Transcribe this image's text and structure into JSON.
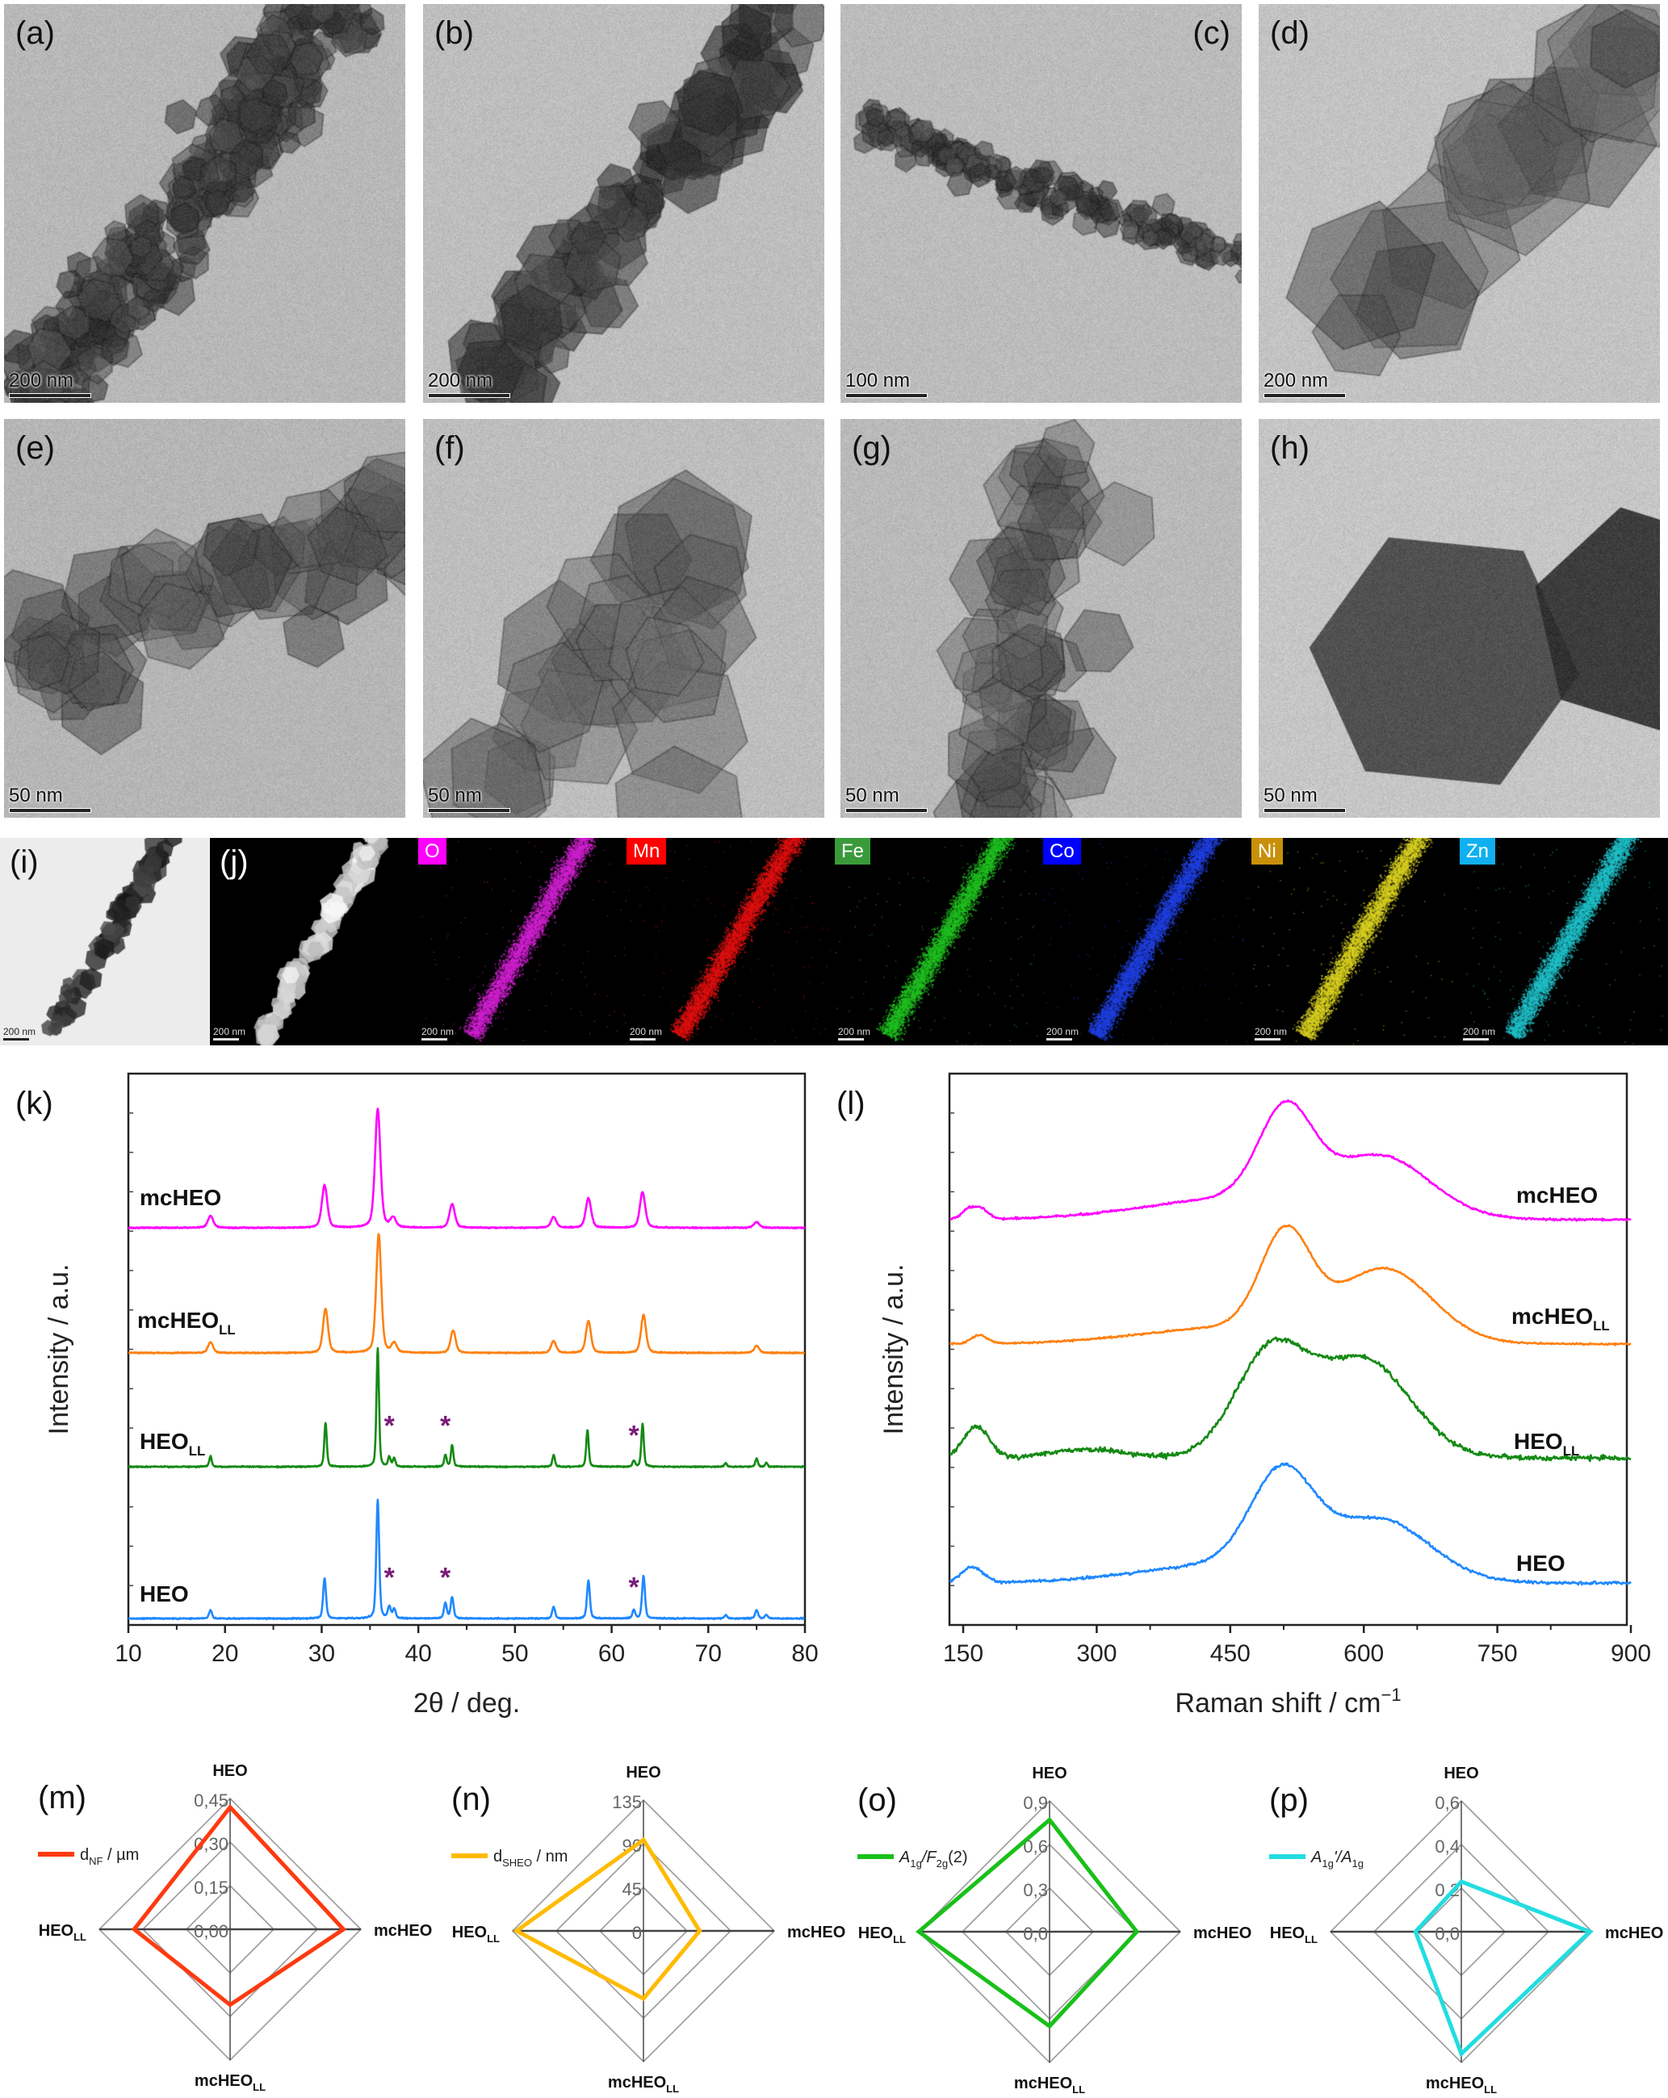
{
  "tem_panels": [
    {
      "label": "(a)",
      "scale_bar": "200 nm"
    },
    {
      "label": "(b)",
      "scale_bar": "200 nm"
    },
    {
      "label": "(c)",
      "scale_bar": "100 nm"
    },
    {
      "label": "(d)",
      "scale_bar": "200 nm"
    },
    {
      "label": "(e)",
      "scale_bar": "50 nm"
    },
    {
      "label": "(f)",
      "scale_bar": "50 nm"
    },
    {
      "label": "(g)",
      "scale_bar": "50 nm"
    },
    {
      "label": "(h)",
      "scale_bar": "50 nm"
    }
  ],
  "eds": {
    "bright_field": {
      "label": "(i)",
      "scale_bar": "200 nm"
    },
    "haadf": {
      "label": "(j)",
      "scale_bar": "200 nm"
    },
    "maps": [
      {
        "element": "O",
        "color": "#ff00ff",
        "map_color": "#d020d0",
        "scale_bar": "200 nm"
      },
      {
        "element": "Mn",
        "color": "#ff0000",
        "map_color": "#e01010",
        "scale_bar": "200 nm"
      },
      {
        "element": "Fe",
        "color": "#3a9a3a",
        "map_color": "#20c020",
        "scale_bar": "200 nm"
      },
      {
        "element": "Co",
        "color": "#0000ff",
        "map_color": "#2040e0",
        "scale_bar": "200 nm"
      },
      {
        "element": "Ni",
        "color": "#c8900a",
        "map_color": "#d8d020",
        "scale_bar": "200 nm"
      },
      {
        "element": "Zn",
        "color": "#10b0f0",
        "map_color": "#20c0c8",
        "scale_bar": "200 nm"
      }
    ]
  },
  "chart_data": [
    {
      "panel": "(k)",
      "type": "line",
      "xlabel": "2θ / deg.",
      "ylabel": "Intensity / a.u.",
      "xlim": [
        10,
        80
      ],
      "xticks": [
        "10",
        "20",
        "30",
        "40",
        "50",
        "60",
        "70",
        "80"
      ],
      "y_tick_labels": false,
      "marker_symbol": "*",
      "marker_color": "#7a1a7a",
      "series": [
        {
          "name": "mcHEO",
          "name_sub": "",
          "color": "#ff00ff",
          "peak_width": 0.28,
          "peaks": [
            [
              18.5,
              0.1
            ],
            [
              30.3,
              0.36
            ],
            [
              35.8,
              1.0
            ],
            [
              37.4,
              0.08
            ],
            [
              43.5,
              0.2
            ],
            [
              54.0,
              0.09
            ],
            [
              57.6,
              0.25
            ],
            [
              63.2,
              0.3
            ],
            [
              75.0,
              0.05
            ]
          ],
          "markers": []
        },
        {
          "name": "mcHEO",
          "name_sub": "LL",
          "color": "#ff8010",
          "peak_width": 0.26,
          "peaks": [
            [
              18.5,
              0.09
            ],
            [
              30.4,
              0.37
            ],
            [
              35.9,
              1.0
            ],
            [
              37.5,
              0.08
            ],
            [
              43.6,
              0.19
            ],
            [
              54.0,
              0.1
            ],
            [
              57.6,
              0.27
            ],
            [
              63.3,
              0.32
            ],
            [
              75.0,
              0.06
            ]
          ],
          "markers": []
        },
        {
          "name": "HEO",
          "name_sub": "LL",
          "color": "#148a14",
          "peak_width": 0.13,
          "peaks": [
            [
              18.5,
              0.09
            ],
            [
              30.4,
              0.37
            ],
            [
              35.8,
              1.0
            ],
            [
              37.0,
              0.08
            ],
            [
              37.5,
              0.07
            ],
            [
              42.8,
              0.1
            ],
            [
              43.5,
              0.18
            ],
            [
              54.0,
              0.1
            ],
            [
              57.5,
              0.31
            ],
            [
              62.3,
              0.05
            ],
            [
              63.2,
              0.36
            ],
            [
              71.8,
              0.03
            ],
            [
              75.0,
              0.07
            ],
            [
              76.0,
              0.03
            ]
          ],
          "markers": [
            37.0,
            42.8,
            62.3
          ]
        },
        {
          "name": "HEO",
          "name_sub": "",
          "color": "#1e88ff",
          "peak_width": 0.15,
          "peaks": [
            [
              18.5,
              0.07
            ],
            [
              30.3,
              0.34
            ],
            [
              35.8,
              1.0
            ],
            [
              37.0,
              0.1
            ],
            [
              37.5,
              0.08
            ],
            [
              42.8,
              0.13
            ],
            [
              43.5,
              0.18
            ],
            [
              54.0,
              0.1
            ],
            [
              57.6,
              0.32
            ],
            [
              62.3,
              0.07
            ],
            [
              63.3,
              0.36
            ],
            [
              71.8,
              0.03
            ],
            [
              75.0,
              0.07
            ],
            [
              76.0,
              0.03
            ]
          ],
          "markers": [
            37.0,
            42.8,
            62.3
          ]
        }
      ]
    },
    {
      "panel": "(l)",
      "type": "line",
      "xlabel": "Raman shift / cm",
      "xlabel_sup": "−1",
      "ylabel": "Intensity / a.u.",
      "xlim": [
        135,
        900
      ],
      "xticks": [
        "150",
        "300",
        "450",
        "600",
        "750",
        "900"
      ],
      "y_tick_labels": false,
      "series": [
        {
          "name": "mcHEO",
          "name_sub": "",
          "color": "#ff00ff",
          "bands": [
            [
              512,
              0.8,
              30
            ],
            [
              620,
              0.5,
              55
            ],
            [
              470,
              0.2,
              110
            ],
            [
              158,
              0.1,
              9
            ],
            [
              172,
              0.07,
              7
            ]
          ]
        },
        {
          "name": "mcHEO",
          "name_sub": "LL",
          "color": "#ff8010",
          "bands": [
            [
              512,
              0.8,
              28
            ],
            [
              625,
              0.58,
              52
            ],
            [
              470,
              0.15,
              110
            ],
            [
              168,
              0.07,
              9
            ]
          ]
        },
        {
          "name": "HEO",
          "name_sub": "LL",
          "color": "#148a14",
          "bands": [
            [
              495,
              0.72,
              40
            ],
            [
              600,
              0.68,
              52
            ],
            [
              165,
              0.22,
              14
            ],
            [
              290,
              0.06,
              40
            ]
          ]
        },
        {
          "name": "HEO",
          "name_sub": "",
          "color": "#1e88ff",
          "bands": [
            [
              508,
              0.82,
              35
            ],
            [
              620,
              0.5,
              55
            ],
            [
              470,
              0.18,
              110
            ],
            [
              160,
              0.14,
              12
            ]
          ]
        }
      ]
    },
    {
      "panel": "(m)",
      "type": "radar",
      "axes": [
        {
          "label": "HEO",
          "sub": ""
        },
        {
          "label": "mcHEO",
          "sub": ""
        },
        {
          "label": "mcHEO",
          "sub": "LL"
        },
        {
          "label": "HEO",
          "sub": "LL"
        }
      ],
      "rlim": [
        0,
        0.45
      ],
      "rticks": [
        "0,00",
        "0,15",
        "0,30",
        "0,45"
      ],
      "legend": [
        {
          "text": "d",
          "sub": false,
          "italic": false
        },
        {
          "text": "NF",
          "sub": true,
          "italic": false
        },
        {
          "text": " / µm",
          "sub": false,
          "italic": false
        }
      ],
      "color": "#ff3a10",
      "values": [
        0.42,
        0.39,
        0.26,
        0.33
      ]
    },
    {
      "panel": "(n)",
      "type": "radar",
      "axes": [
        {
          "label": "HEO",
          "sub": ""
        },
        {
          "label": "mcHEO",
          "sub": ""
        },
        {
          "label": "mcHEO",
          "sub": "LL"
        },
        {
          "label": "HEO",
          "sub": "LL"
        }
      ],
      "rlim": [
        0,
        135
      ],
      "rticks": [
        "0",
        "45",
        "90",
        "135"
      ],
      "legend": [
        {
          "text": "d",
          "sub": false,
          "italic": false
        },
        {
          "text": "SHEO",
          "sub": true,
          "italic": false
        },
        {
          "text": " / nm",
          "sub": false,
          "italic": false
        }
      ],
      "color": "#ffbb00",
      "values": [
        94,
        58,
        70,
        131
      ]
    },
    {
      "panel": "(o)",
      "type": "radar",
      "axes": [
        {
          "label": "HEO",
          "sub": ""
        },
        {
          "label": "mcHEO",
          "sub": ""
        },
        {
          "label": "mcHEO",
          "sub": "LL"
        },
        {
          "label": "HEO",
          "sub": "LL"
        }
      ],
      "rlim": [
        0,
        0.9
      ],
      "rticks": [
        "0,0",
        "0,3",
        "0,6",
        "0,9"
      ],
      "legend": [
        {
          "text": "A",
          "sub": false,
          "italic": true
        },
        {
          "text": "1g",
          "sub": true,
          "italic": false
        },
        {
          "text": "/F",
          "sub": false,
          "italic": true
        },
        {
          "text": "2g",
          "sub": true,
          "italic": false
        },
        {
          "text": "(2)",
          "sub": false,
          "italic": false
        }
      ],
      "color": "#19c019",
      "values": [
        0.77,
        0.6,
        0.65,
        0.9
      ]
    },
    {
      "panel": "(p)",
      "type": "radar",
      "axes": [
        {
          "label": "HEO",
          "sub": ""
        },
        {
          "label": "mcHEO",
          "sub": ""
        },
        {
          "label": "mcHEO",
          "sub": "LL"
        },
        {
          "label": "HEO",
          "sub": "LL"
        }
      ],
      "rlim": [
        0,
        0.6
      ],
      "rticks": [
        "0,0",
        "0,2",
        "0,4",
        "0,6"
      ],
      "legend": [
        {
          "text": "A",
          "sub": false,
          "italic": true
        },
        {
          "text": "1g",
          "sub": true,
          "italic": false
        },
        {
          "text": "'/A",
          "sub": false,
          "italic": true
        },
        {
          "text": "1g",
          "sub": true,
          "italic": false
        }
      ],
      "color": "#22dde0",
      "values": [
        0.23,
        0.59,
        0.56,
        0.21
      ]
    }
  ]
}
